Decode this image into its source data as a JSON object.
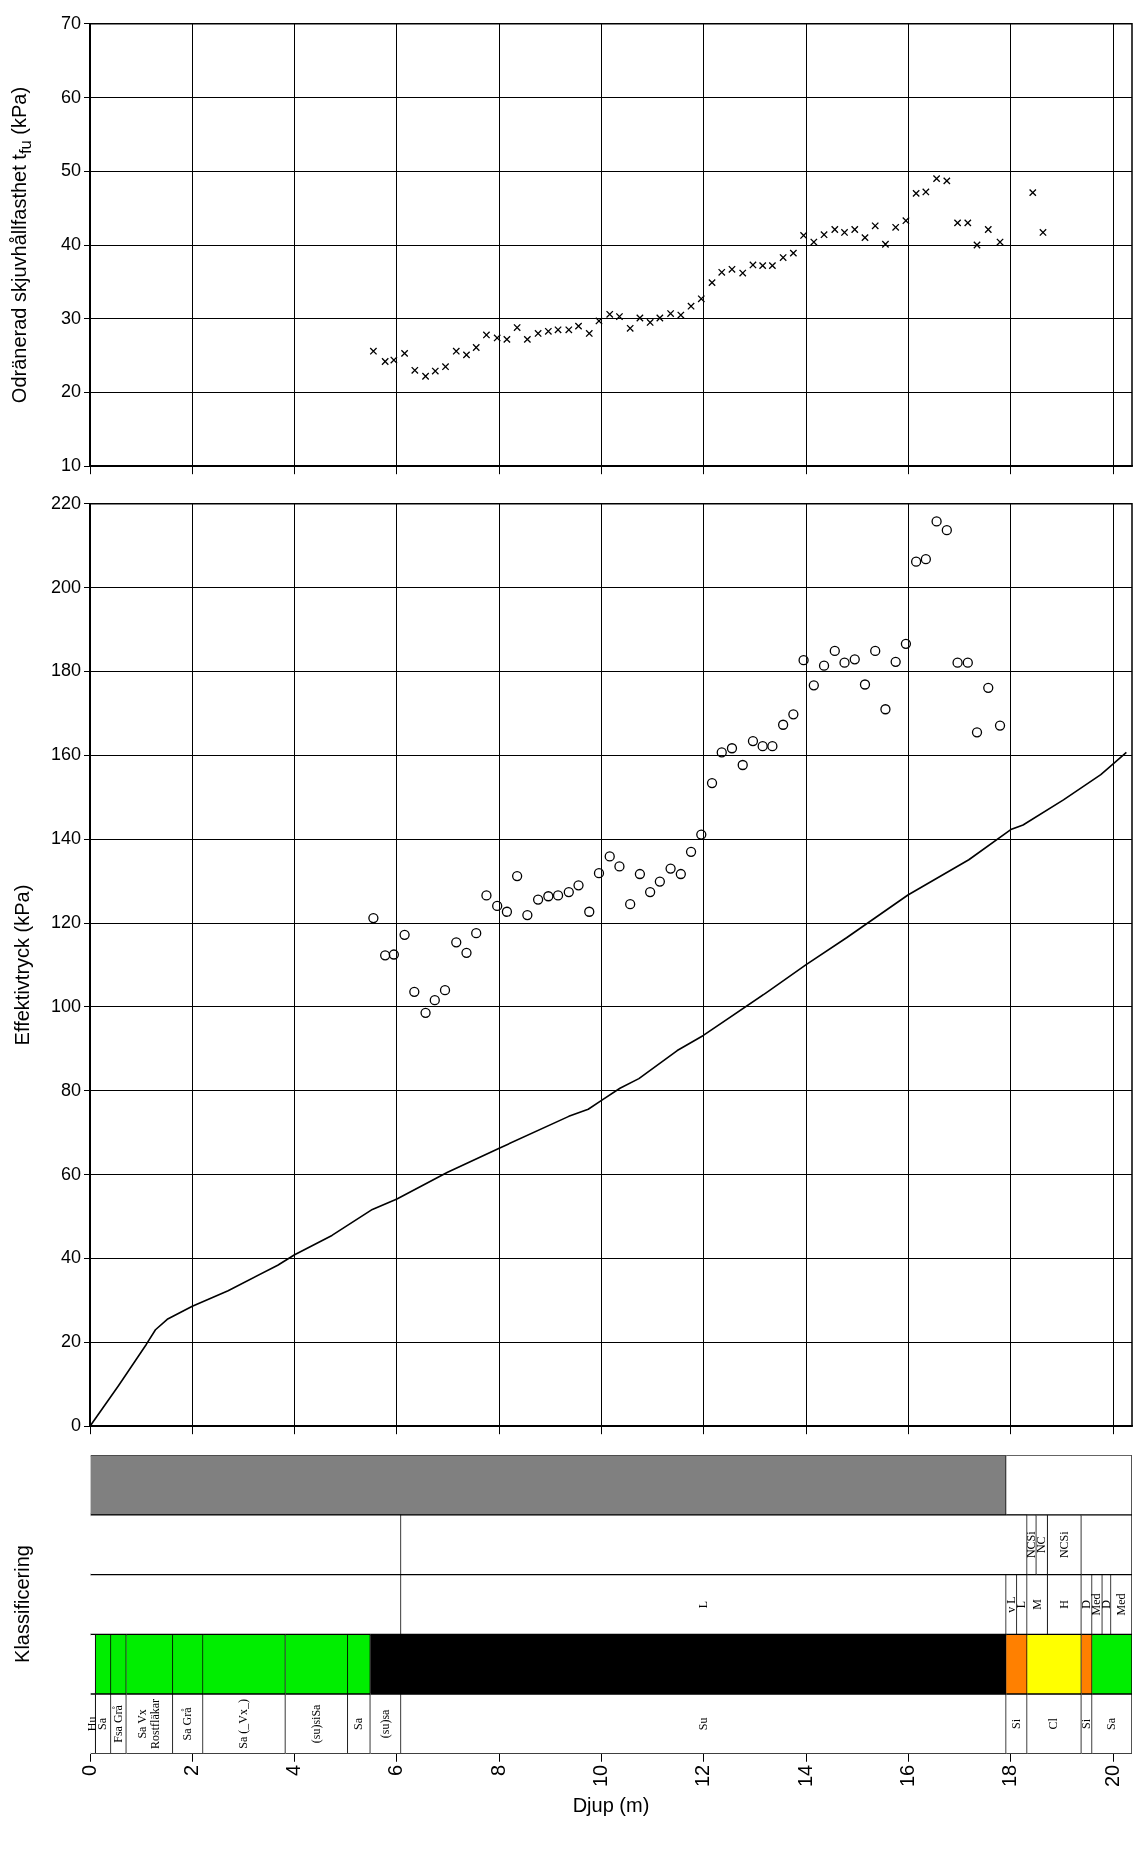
{
  "chart_data": [
    {
      "type": "scatter",
      "ylabel": "Odränerad skjuvhållfasthet t$_{fu}$  (kPa)",
      "xlim": [
        0,
        20.37
      ],
      "xticks": [
        0,
        2,
        4,
        6,
        8,
        10,
        12,
        14,
        16,
        18,
        20
      ],
      "ylim": [
        10,
        70
      ],
      "yticks": [
        10,
        20,
        30,
        40,
        50,
        60,
        70
      ],
      "grid": true,
      "tick_labels": "y",
      "series": [
        {
          "type": "scatter",
          "color": "#000000",
          "marker": "cross",
          "x": [
            5.54,
            5.77,
            5.94,
            6.15,
            6.35,
            6.56,
            6.75,
            6.95,
            7.16,
            7.36,
            7.55,
            7.75,
            7.96,
            8.15,
            8.35,
            8.55,
            8.76,
            8.96,
            9.15,
            9.36,
            9.55,
            9.76,
            9.95,
            10.16,
            10.35,
            10.56,
            10.75,
            10.95,
            11.14,
            11.35,
            11.55,
            11.75,
            11.95,
            12.16,
            12.35,
            12.55,
            12.76,
            12.96,
            13.15,
            13.34,
            13.55,
            13.75,
            13.95,
            14.15,
            14.35,
            14.56,
            14.75,
            14.95,
            15.15,
            15.35,
            15.55,
            15.75,
            15.95,
            16.15,
            16.34,
            16.55,
            16.75,
            16.96,
            17.16,
            17.34,
            17.56,
            17.79
          ],
          "values": [
            25.6,
            24.2,
            24.4,
            25.3,
            23.0,
            22.2,
            22.9,
            23.5,
            25.6,
            25.1,
            26.1,
            27.8,
            27.4,
            27.2,
            28.8,
            27.2,
            28.0,
            28.3,
            28.5,
            28.5,
            29.0,
            28.0,
            29.7,
            30.6,
            30.3,
            28.7,
            30.1,
            29.5,
            30.1,
            30.7,
            30.5,
            31.7,
            32.7,
            34.9,
            36.3,
            36.7,
            36.2,
            37.3,
            37.2,
            37.2,
            38.3,
            38.9,
            41.3,
            40.4,
            41.4,
            42.1,
            41.7,
            42.1,
            41.0,
            42.6,
            40.1,
            42.4,
            43.3,
            47.0,
            47.2,
            49.0,
            48.7,
            43.0,
            43.0,
            40.0,
            42.1,
            40.4
          ]
        },
        {
          "type": "scatter",
          "color": "#000000",
          "marker": "cross",
          "x": [
            18.43,
            18.63
          ],
          "values": [
            47.1,
            41.7
          ]
        }
      ]
    },
    {
      "type": "scatter",
      "ylabel": "Effektivtryck  (kPa)",
      "xlim": [
        0,
        20.37
      ],
      "xticks": [
        0,
        2,
        4,
        6,
        8,
        10,
        12,
        14,
        16,
        18,
        20
      ],
      "ylim": [
        0,
        220
      ],
      "yticks": [
        0,
        20,
        40,
        60,
        80,
        100,
        120,
        140,
        160,
        180,
        200,
        220
      ],
      "grid": true,
      "tick_labels": "y",
      "series": [
        {
          "type": "scatter",
          "color": "#000000",
          "marker": "circle",
          "x": [
            5.54,
            5.77,
            5.94,
            6.15,
            6.34,
            6.56,
            6.74,
            6.94,
            7.16,
            7.36,
            7.55,
            7.75,
            7.96,
            8.15,
            8.35,
            8.55,
            8.76,
            8.96,
            9.15,
            9.36,
            9.55,
            9.76,
            9.95,
            10.16,
            10.35,
            10.56,
            10.75,
            10.95,
            11.14,
            11.35,
            11.55,
            11.75,
            11.95,
            12.16,
            12.35,
            12.55,
            12.76,
            12.96,
            13.15,
            13.34,
            13.55,
            13.75,
            13.95,
            14.15,
            14.35,
            14.56,
            14.75,
            14.95,
            15.15,
            15.35,
            15.55,
            15.75,
            15.95,
            16.15,
            16.34,
            16.55,
            16.75,
            16.96,
            17.16,
            17.34,
            17.56,
            17.79
          ],
          "values": [
            121.2,
            112.3,
            112.5,
            117.2,
            103.6,
            98.6,
            101.6,
            104.0,
            115.4,
            112.9,
            117.6,
            126.6,
            124.1,
            122.7,
            131.2,
            121.9,
            125.6,
            126.4,
            126.6,
            127.4,
            129.0,
            122.7,
            131.9,
            135.9,
            133.5,
            124.5,
            131.7,
            127.4,
            129.9,
            133.0,
            131.7,
            137.0,
            141.1,
            153.4,
            160.7,
            161.7,
            157.7,
            163.4,
            162.2,
            162.2,
            167.3,
            169.8,
            182.7,
            176.7,
            181.4,
            184.9,
            182.1,
            182.9,
            176.9,
            184.9,
            171.0,
            182.3,
            186.6,
            206.2,
            206.8,
            215.8,
            213.7,
            182.1,
            182.1,
            165.5,
            176.1,
            167.1
          ]
        },
        {
          "type": "line",
          "color": "#000000",
          "marker": "none",
          "line_style": "solid",
          "x": [
            0,
            0.56,
            1.1,
            1.28,
            1.51,
            2.0,
            2.7,
            3.67,
            4.0,
            4.73,
            5.52,
            6.0,
            6.98,
            8.0,
            9.36,
            9.74,
            10.0,
            10.36,
            10.73,
            11.48,
            11.99,
            13.21,
            14.0,
            14.79,
            15.99,
            17.18,
            18.0,
            18.24,
            19.03,
            19.76,
            20.26
          ],
          "values": [
            0,
            9.7,
            19.5,
            23.0,
            25.5,
            28.6,
            32.3,
            38.4,
            40.9,
            45.5,
            51.7,
            54.2,
            60.5,
            66.3,
            73.9,
            75.6,
            77.7,
            80.6,
            82.9,
            89.6,
            93.2,
            103.3,
            110.1,
            116.5,
            126.7,
            135.1,
            142.3,
            143.4,
            149.4,
            155.4,
            160.7
          ]
        }
      ]
    },
    {
      "type": "bar",
      "orientation": "horizontal",
      "stacked": true,
      "categories": [
        null,
        null,
        null,
        null,
        null
      ],
      "ylabel": "Klassificering",
      "xlabel": "Djup  (m)",
      "xlim": [
        0,
        20.37
      ],
      "xticks": [
        0,
        2,
        4,
        6,
        8,
        10,
        12,
        14,
        16,
        18,
        20
      ],
      "series": [
        {
          "values": [
            17.91,
            6.08,
            6.08,
            0.11,
            0.11
          ],
          "colors": [
            "#808080",
            "#ffffff",
            "#ffffff",
            "#ffffff",
            "#ffffff"
          ],
          "value_labels": [
            null,
            null,
            null,
            null,
            "Hu"
          ]
        },
        {
          "values": [
            2.46,
            12.24,
            11.83,
            0.3,
            0.3
          ],
          "colors": [
            "#ffffff",
            "#ffffff",
            "#ffffff",
            "#00ee00",
            "#ffffff"
          ],
          "value_labels": [
            null,
            null,
            "L",
            null,
            "Sa"
          ]
        },
        {
          "values": [
            null,
            0.18,
            0.21,
            0.3,
            0.3
          ],
          "colors": [
            "#ffffff",
            "#ffffff",
            "#ffffff",
            "#00ee00",
            "#ffffff"
          ],
          "value_labels": [
            null,
            "NCSi",
            "v L",
            null,
            "Fsa Grå"
          ]
        },
        {
          "values": [
            null,
            0.22,
            0.2,
            0.91,
            0.91
          ],
          "colors": [
            "#ffffff",
            "#ffffff",
            "#ffffff",
            "#00ee00",
            "#ffffff"
          ],
          "value_labels": [
            null,
            "NC",
            "L",
            null,
            "Sa Vx Rostfläkar"
          ]
        },
        {
          "values": [
            null,
            0.66,
            0.4,
            0.59,
            0.59
          ],
          "colors": [
            "#ffffff",
            "#ffffff",
            "#ffffff",
            "#00ee00",
            "#ffffff"
          ],
          "value_labels": [
            null,
            "NCSi",
            "M",
            null,
            "Sa Grå"
          ]
        },
        {
          "values": [
            null,
            0.99,
            0.66,
            1.61,
            1.61
          ],
          "colors": [
            "#ffffff",
            "#ffffff",
            "#ffffff",
            "#00ee00",
            "#ffffff"
          ],
          "value_labels": [
            null,
            null,
            "H",
            null,
            "Sa (_Vx_)"
          ]
        },
        {
          "values": [
            null,
            null,
            0.21,
            1.22,
            1.22
          ],
          "colors": [
            "#ffffff",
            "#ffffff",
            "#ffffff",
            "#00ee00",
            "#ffffff"
          ],
          "value_labels": [
            null,
            null,
            "D",
            null,
            "(su)siSa"
          ]
        },
        {
          "values": [
            null,
            null,
            0.2,
            0.44,
            0.44
          ],
          "colors": [
            "#ffffff",
            "#ffffff",
            "#ffffff",
            "#00ee00",
            "#ffffff"
          ],
          "value_labels": [
            null,
            null,
            "Med",
            null,
            "Sa"
          ]
        },
        {
          "values": [
            null,
            null,
            0.17,
            12.43,
            0.6
          ],
          "colors": [
            "#ffffff",
            "#ffffff",
            "#ffffff",
            "#000000",
            "#ffffff"
          ],
          "value_labels": [
            null,
            null,
            "D",
            null,
            "(su)sa"
          ]
        },
        {
          "values": [
            null,
            null,
            0.41,
            0.41,
            11.83
          ],
          "colors": [
            "#ffffff",
            "#ffffff",
            "#ffffff",
            "#ff8000",
            "#ffffff"
          ],
          "value_labels": [
            null,
            null,
            "Med",
            null,
            "Su"
          ]
        },
        {
          "values": [
            null,
            null,
            null,
            1.06,
            0.41
          ],
          "colors": [
            "#ffffff",
            "#ffffff",
            "#ffffff",
            "#ffff00",
            "#ffffff"
          ],
          "value_labels": [
            null,
            null,
            null,
            null,
            "Si"
          ]
        },
        {
          "values": [
            null,
            null,
            null,
            0.21,
            1.06
          ],
          "colors": [
            "#ffffff",
            "#ffffff",
            "#ffffff",
            "#ff8000",
            "#ffffff"
          ],
          "value_labels": [
            null,
            null,
            null,
            null,
            "Cl"
          ]
        },
        {
          "values": [
            null,
            null,
            null,
            0.78,
            0.21
          ],
          "colors": [
            "#ffffff",
            "#ffffff",
            "#ffffff",
            "#00ee00",
            "#ffffff"
          ],
          "value_labels": [
            null,
            null,
            null,
            null,
            "Si"
          ]
        },
        {
          "values": [
            null,
            null,
            null,
            null,
            0.78
          ],
          "colors": [
            "#ffffff",
            "#ffffff",
            "#ffffff",
            "#ffffff",
            "#ffffff"
          ],
          "value_labels": [
            null,
            null,
            null,
            null,
            "Sa"
          ]
        }
      ]
    }
  ]
}
